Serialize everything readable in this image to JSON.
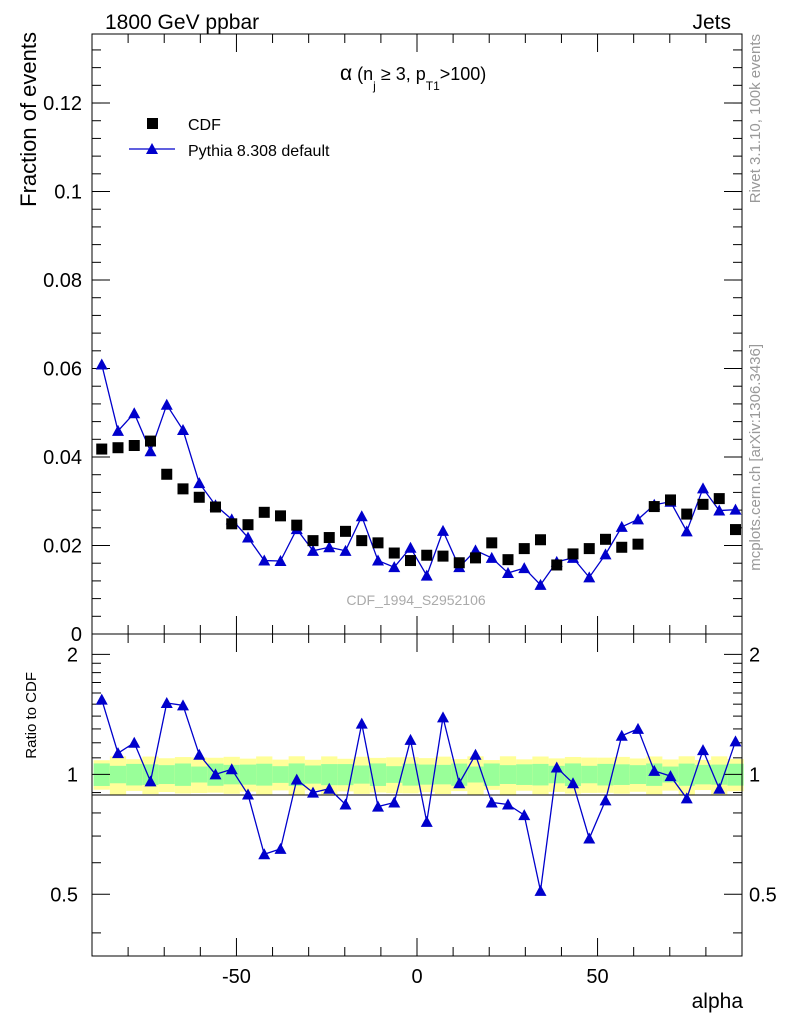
{
  "header": {
    "energy": "1800 GeV ppbar",
    "process": "Jets"
  },
  "side_labels": {
    "rivet": "Rivet 3.1.10,  100k events",
    "mcplots": "mcplots.cern.ch [arXiv:1306.3436]"
  },
  "watermark": "CDF_1994_S2952106",
  "plot_title": {
    "alpha": "α",
    "open": " (n",
    "j_sub": "j",
    "mid": " ≥ 3, p",
    "t1_sub": "T1",
    "close": ">100)"
  },
  "colors": {
    "data": "#000000",
    "mc": "#0000cc",
    "band_inner": "#99ff99",
    "band_outer": "#ffff99"
  },
  "chart_data": [
    {
      "type": "scatter",
      "panel": "main",
      "ylabel": "Fraction of events",
      "xlim": [
        -90,
        90
      ],
      "ylim": [
        0,
        0.1356
      ],
      "y_ticks": [
        "0",
        "0.02",
        "0.04",
        "0.06",
        "0.08",
        "0.1",
        "0.12"
      ],
      "legend_position": "top-left",
      "x": [
        -87.3,
        -82.8,
        -78.3,
        -73.8,
        -69.3,
        -64.8,
        -60.3,
        -55.8,
        -51.3,
        -46.8,
        -42.3,
        -37.8,
        -33.3,
        -28.8,
        -24.3,
        -19.8,
        -15.3,
        -10.8,
        -6.3,
        -1.8,
        2.7,
        7.2,
        11.7,
        16.2,
        20.7,
        25.2,
        29.7,
        34.2,
        38.7,
        43.2,
        47.7,
        52.2,
        56.7,
        61.2,
        65.7,
        70.2,
        74.7,
        79.2,
        83.7,
        88.2
      ],
      "series": [
        {
          "name": "CDF",
          "marker": "square",
          "values": [
            0.0418,
            0.0421,
            0.0426,
            0.0436,
            0.0361,
            0.0328,
            0.0309,
            0.0287,
            0.0249,
            0.0247,
            0.0275,
            0.0267,
            0.0246,
            0.0211,
            0.0218,
            0.0232,
            0.0211,
            0.0206,
            0.0183,
            0.0166,
            0.0178,
            0.0176,
            0.0161,
            0.0172,
            0.0206,
            0.0168,
            0.0193,
            0.0213,
            0.0156,
            0.0181,
            0.0193,
            0.0214,
            0.0196,
            0.0203,
            0.0288,
            0.0303,
            0.0271,
            0.0293,
            0.0306,
            0.0236
          ]
        },
        {
          "name": "Pythia 8.308 default",
          "marker": "triangle",
          "values": [
            0.0609,
            0.0459,
            0.0499,
            0.0413,
            0.0518,
            0.0461,
            0.0341,
            0.0291,
            0.0259,
            0.0218,
            0.0166,
            0.0165,
            0.0237,
            0.0188,
            0.0196,
            0.0188,
            0.0266,
            0.0166,
            0.0151,
            0.0195,
            0.0132,
            0.0233,
            0.0151,
            0.0189,
            0.0172,
            0.0138,
            0.0149,
            0.0111,
            0.0163,
            0.0172,
            0.0128,
            0.018,
            0.0242,
            0.0259,
            0.0292,
            0.0299,
            0.0232,
            0.0329,
            0.0279,
            0.0281
          ]
        }
      ]
    },
    {
      "type": "line",
      "panel": "ratio",
      "ylabel": "Ratio to CDF",
      "xlabel": "alpha",
      "xlim": [
        -90,
        90
      ],
      "ylim": [
        0.35,
        2.25
      ],
      "y_scale": "log",
      "y_ticks": [
        "0.5",
        "1",
        "2"
      ],
      "x_ticks": [
        "-50",
        "0",
        "50"
      ],
      "x": [
        -87.3,
        -82.8,
        -78.3,
        -73.8,
        -69.3,
        -64.8,
        -60.3,
        -55.8,
        -51.3,
        -46.8,
        -42.3,
        -37.8,
        -33.3,
        -28.8,
        -24.3,
        -19.8,
        -15.3,
        -10.8,
        -6.3,
        -1.8,
        2.7,
        7.2,
        11.7,
        16.2,
        20.7,
        25.2,
        29.7,
        34.2,
        38.7,
        43.2,
        47.7,
        52.2,
        56.7,
        61.2,
        65.7,
        70.2,
        74.7,
        79.2,
        83.7,
        88.2
      ],
      "series": [
        {
          "name": "Pythia 8.308 default",
          "values": [
            1.54,
            1.13,
            1.2,
            0.96,
            1.51,
            1.49,
            1.12,
            1.0,
            1.03,
            0.89,
            0.63,
            0.65,
            0.97,
            0.9,
            0.92,
            0.84,
            1.34,
            0.83,
            0.85,
            1.22,
            0.76,
            1.39,
            0.95,
            1.12,
            0.85,
            0.84,
            0.79,
            0.51,
            1.04,
            0.95,
            0.69,
            0.86,
            1.25,
            1.3,
            1.02,
            0.99,
            0.87,
            1.15,
            0.92,
            1.21
          ]
        }
      ]
    }
  ]
}
